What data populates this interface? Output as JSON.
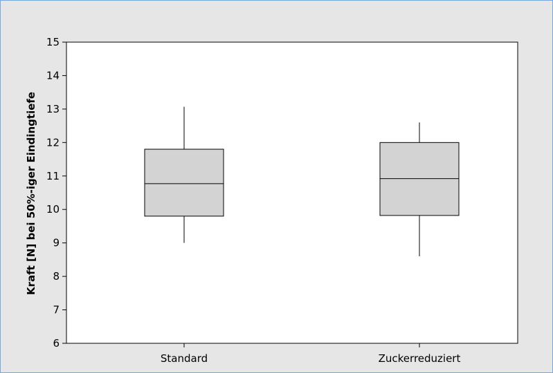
{
  "chart_data": {
    "type": "boxplot",
    "title": "",
    "xlabel": "",
    "ylabel": "Kraft [N] bei 50%-iger Eindingtiefe",
    "ylim": [
      6,
      15
    ],
    "yticks": [
      6,
      7,
      8,
      9,
      10,
      11,
      12,
      13,
      14,
      15
    ],
    "categories": [
      "Standard",
      "Zuckerreduziert"
    ],
    "boxes": [
      {
        "category": "Standard",
        "min": 9.0,
        "q1": 9.8,
        "median": 10.77,
        "q3": 11.8,
        "max": 13.07
      },
      {
        "category": "Zuckerreduziert",
        "min": 8.6,
        "q1": 9.82,
        "median": 10.92,
        "q3": 12.0,
        "max": 12.6
      }
    ],
    "box_fill": "#d3d3d3",
    "grid": false,
    "legend": "none"
  }
}
